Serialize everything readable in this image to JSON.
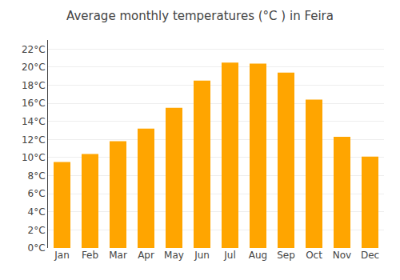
{
  "chart_data": {
    "type": "bar",
    "title": "Average monthly temperatures (°C ) in Feira",
    "categories": [
      "Jan",
      "Feb",
      "Mar",
      "Apr",
      "May",
      "Jun",
      "Jul",
      "Aug",
      "Sep",
      "Oct",
      "Nov",
      "Dec"
    ],
    "values": [
      9.5,
      10.4,
      11.8,
      13.2,
      15.5,
      18.5,
      20.5,
      20.4,
      19.4,
      16.4,
      12.3,
      10.1
    ],
    "color": "#FFA500",
    "ylim": [
      0,
      23
    ],
    "yticks": [
      {
        "value": 0,
        "label": "0°C"
      },
      {
        "value": 2,
        "label": "2°C"
      },
      {
        "value": 4,
        "label": "4°C"
      },
      {
        "value": 6,
        "label": "6°C"
      },
      {
        "value": 8,
        "label": "8°C"
      },
      {
        "value": 10,
        "label": "10°C"
      },
      {
        "value": 12,
        "label": "12°C"
      },
      {
        "value": 14,
        "label": "14°C"
      },
      {
        "value": 16,
        "label": "16°C"
      },
      {
        "value": 18,
        "label": "18°C"
      },
      {
        "value": 20,
        "label": "20°C"
      },
      {
        "value": 22,
        "label": "22°C"
      }
    ],
    "grid": true
  }
}
